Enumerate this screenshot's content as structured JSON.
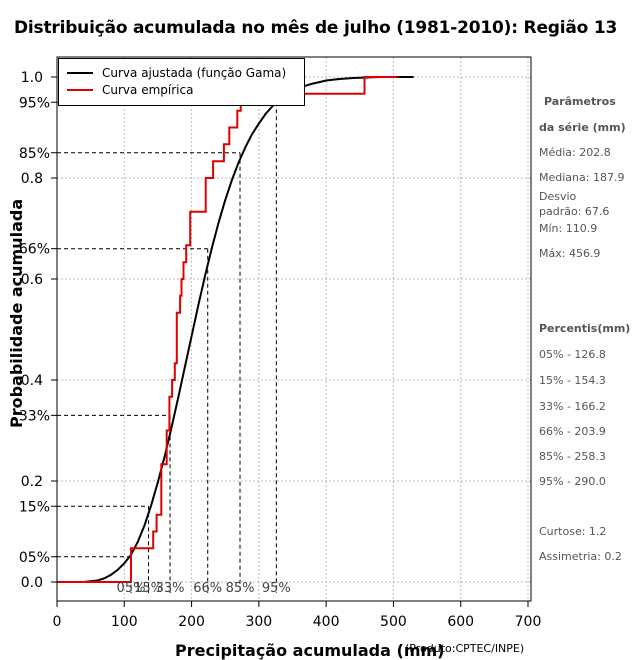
{
  "chart_data": {
    "type": "line",
    "title": "Distribuição acumulada no mês de julho (1981-2010): Região 13",
    "xlabel": "Precipitação acumulada (mm)",
    "ylabel": "Probabilidade acumulada",
    "source": "(Produto:CPTEC/INPE)",
    "xlim": [
      0,
      700
    ],
    "ylim": [
      0,
      1
    ],
    "x_ticks": [
      0,
      100,
      200,
      300,
      400,
      500,
      600,
      700
    ],
    "y_ticks": [
      0.0,
      0.2,
      0.4,
      0.6,
      0.8,
      1.0
    ],
    "y_tick_labels": [
      "0.0",
      "0.2",
      "0.4",
      "0.6",
      "0.8",
      "1.0"
    ],
    "percentile_ticks": [
      0.05,
      0.15,
      0.33,
      0.66,
      0.85,
      0.95
    ],
    "percentile_labels": [
      "05%",
      "15%",
      "33%",
      "66%",
      "85%",
      "95%"
    ],
    "gamma_percentile_x": [
      110,
      136,
      168,
      224,
      272,
      326
    ],
    "grid": true,
    "legend": {
      "position": "top-left",
      "entries": [
        {
          "name": "Curva ajustada (função Gama)",
          "color": "#000000"
        },
        {
          "name": "Curva empírica",
          "color": "#e00000"
        }
      ]
    },
    "series": [
      {
        "name": "Curva ajustada (função Gama)",
        "color": "#000000",
        "x": [
          0,
          40,
          60,
          70,
          80,
          90,
          100,
          110,
          120,
          130,
          140,
          150,
          160,
          170,
          180,
          190,
          200,
          210,
          220,
          230,
          240,
          250,
          260,
          270,
          280,
          290,
          300,
          310,
          320,
          330,
          340,
          350,
          360,
          370,
          380,
          390,
          400,
          420,
          440,
          460,
          480,
          500,
          530
        ],
        "y": [
          0.0,
          0.0,
          0.003,
          0.007,
          0.014,
          0.024,
          0.037,
          0.054,
          0.079,
          0.112,
          0.152,
          0.198,
          0.249,
          0.305,
          0.364,
          0.425,
          0.487,
          0.548,
          0.606,
          0.661,
          0.711,
          0.756,
          0.796,
          0.831,
          0.861,
          0.887,
          0.908,
          0.927,
          0.942,
          0.954,
          0.964,
          0.972,
          0.978,
          0.983,
          0.987,
          0.99,
          0.993,
          0.996,
          0.998,
          0.999,
          1.0,
          1.0,
          1.0
        ]
      },
      {
        "name": "Curva empírica",
        "color": "#e00000",
        "step": true,
        "x": [
          0,
          110,
          110,
          143,
          143,
          148,
          148,
          155,
          155,
          163,
          163,
          167,
          167,
          171,
          171,
          175,
          175,
          178,
          178,
          183,
          183,
          185,
          185,
          188,
          188,
          192,
          192,
          198,
          198,
          221,
          221,
          232,
          232,
          248,
          248,
          256,
          256,
          268,
          268,
          273,
          273,
          300,
          300,
          395,
          395,
          457,
          457,
          506
        ],
        "y": [
          0.0,
          0.0,
          0.067,
          0.067,
          0.1,
          0.1,
          0.133,
          0.133,
          0.233,
          0.233,
          0.3,
          0.3,
          0.367,
          0.367,
          0.4,
          0.4,
          0.433,
          0.433,
          0.533,
          0.533,
          0.567,
          0.567,
          0.6,
          0.6,
          0.633,
          0.633,
          0.667,
          0.667,
          0.733,
          0.733,
          0.8,
          0.8,
          0.833,
          0.833,
          0.867,
          0.867,
          0.9,
          0.9,
          0.933,
          0.933,
          0.967,
          0.967,
          0.967,
          0.967,
          0.967,
          0.967,
          1.0,
          1.0
        ]
      }
    ],
    "side_panel": {
      "header1": "Parâmetros",
      "header2": "da série (mm)",
      "media": "Média: 202.8",
      "mediana": "Mediana: 187.9",
      "desvio1": "Desvio",
      "desvio2": "padrão: 67.6",
      "min": "Mín: 110.9",
      "max": "Máx: 456.9",
      "percentis_header": "Percentis(mm)",
      "p05": "05% - 126.8",
      "p15": "15% - 154.3",
      "p33": "33% - 166.2",
      "p66": "66% - 203.9",
      "p85": "85% - 258.3",
      "p95": "95% - 290.0",
      "curtose": "Curtose: 1.2",
      "assimetria": "Assimetria: 0.2"
    }
  }
}
